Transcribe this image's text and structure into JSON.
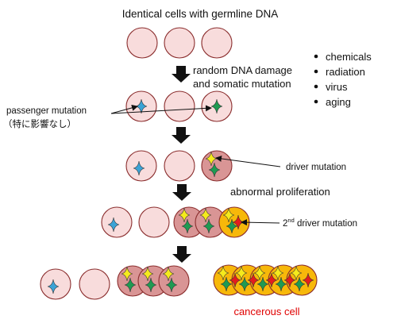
{
  "title": "Identical cells with germline DNA",
  "step1_label_line1": "random DNA damage",
  "step1_label_line2": "and somatic mutation",
  "causes": [
    "chemicals",
    "radiation",
    "virus",
    "aging"
  ],
  "passenger_label_line1": "passenger mutation",
  "passenger_label_line2": "（特に影響なし）",
  "driver_label": "driver mutation",
  "proliferation_label": "abnormal proliferation",
  "second_driver_prefix": "2",
  "second_driver_superscript": "nd",
  "second_driver_suffix": " driver mutation",
  "cancer_label": "cancerous cell",
  "colors": {
    "normal_cell_fill": "#f8dcdc",
    "mutated_cell_fill": "#d99595",
    "cancer_cell_fill": "#f7b80a",
    "cell_stroke": "#8b2e2e",
    "passenger_star": "#3aa3d6",
    "green_star": "#1f9a52",
    "yellow_star": "#f5ea1c",
    "red_star": "#e31d1d",
    "cancer_label": "#e00000"
  }
}
